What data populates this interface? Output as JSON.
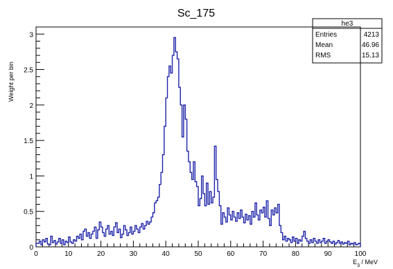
{
  "chart_data": {
    "type": "histogram",
    "title": "Sc_175",
    "xlabel": "E_3 / MeV",
    "ylabel": "Weight per bin",
    "xlim": [
      0,
      100
    ],
    "ylim": [
      0,
      3.1
    ],
    "x_ticks": [
      0,
      10,
      20,
      30,
      40,
      50,
      60,
      70,
      80,
      90,
      100
    ],
    "y_ticks": [
      0,
      0.5,
      1,
      1.5,
      2,
      2.5,
      3
    ],
    "y_tick_labels": [
      "0",
      "0.5",
      "1",
      "1.5",
      "2",
      "2.5",
      "3"
    ],
    "bin_edges_start": 0,
    "bin_width": 0.5,
    "values": [
      0.05,
      0.05,
      0.08,
      0.03,
      0.1,
      0.07,
      0.12,
      0.04,
      0.03,
      0.15,
      0.06,
      0.09,
      0.04,
      0.07,
      0.12,
      0.05,
      0.1,
      0.03,
      0.08,
      0.06,
      0.14,
      0.07,
      0.05,
      0.1,
      0.08,
      0.15,
      0.12,
      0.18,
      0.1,
      0.22,
      0.25,
      0.15,
      0.2,
      0.12,
      0.18,
      0.22,
      0.28,
      0.12,
      0.24,
      0.35,
      0.28,
      0.2,
      0.15,
      0.25,
      0.3,
      0.18,
      0.22,
      0.16,
      0.28,
      0.34,
      0.2,
      0.25,
      0.13,
      0.18,
      0.3,
      0.24,
      0.16,
      0.2,
      0.28,
      0.18,
      0.22,
      0.3,
      0.25,
      0.2,
      0.28,
      0.33,
      0.25,
      0.3,
      0.36,
      0.32,
      0.35,
      0.42,
      0.48,
      0.62,
      0.65,
      0.7,
      0.88,
      1.05,
      1.3,
      1.7,
      2.1,
      2.4,
      2.55,
      2.45,
      2.7,
      2.95,
      2.75,
      2.65,
      2.25,
      2.0,
      1.55,
      2.0,
      1.8,
      1.35,
      1.2,
      1.05,
      0.95,
      1.2,
      0.92,
      0.85,
      0.58,
      0.68,
      1.0,
      0.75,
      0.58,
      0.9,
      0.6,
      0.78,
      0.62,
      0.7,
      1.42,
      0.95,
      0.78,
      0.58,
      0.32,
      0.48,
      0.42,
      0.35,
      0.55,
      0.45,
      0.38,
      0.5,
      0.42,
      0.36,
      0.48,
      0.4,
      0.52,
      0.42,
      0.34,
      0.46,
      0.38,
      0.44,
      0.32,
      0.5,
      0.42,
      0.62,
      0.45,
      0.38,
      0.52,
      0.48,
      0.56,
      0.42,
      0.65,
      0.4,
      0.3,
      0.52,
      0.45,
      0.55,
      0.48,
      0.6,
      0.3,
      0.2,
      0.1,
      0.15,
      0.08,
      0.12,
      0.1,
      0.06,
      0.14,
      0.08,
      0.12,
      0.05,
      0.1,
      0.08,
      0.15,
      0.22,
      0.12,
      0.08,
      0.05,
      0.1,
      0.06,
      0.12,
      0.08,
      0.05,
      0.1,
      0.06,
      0.08,
      0.12,
      0.05,
      0.08,
      0.1,
      0.07,
      0.05,
      0.08,
      0.04,
      0.06,
      0.09,
      0.05,
      0.07,
      0.04,
      0.06,
      0.05,
      0.08,
      0.03,
      0.05,
      0.04,
      0.06,
      0.03,
      0.04,
      0.05
    ],
    "line_color": "#1c22a8",
    "grid": false,
    "stats_box": {
      "name": "he3",
      "rows": [
        {
          "label": "Entries",
          "value": "4213"
        },
        {
          "label": "Mean",
          "value": "46.96"
        },
        {
          "label": "RMS",
          "value": "15.13"
        }
      ]
    }
  }
}
